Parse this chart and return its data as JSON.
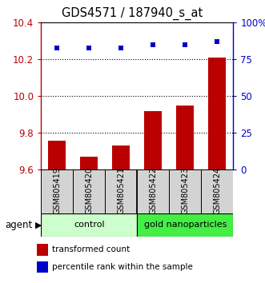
{
  "title": "GDS4571 / 187940_s_at",
  "samples": [
    "GSM805419",
    "GSM805420",
    "GSM805421",
    "GSM805422",
    "GSM805423",
    "GSM805424"
  ],
  "bar_values": [
    9.76,
    9.67,
    9.73,
    9.92,
    9.95,
    10.21
  ],
  "scatter_values": [
    83,
    83,
    83,
    85,
    85,
    87
  ],
  "bar_color": "#bb0000",
  "scatter_color": "#0000cc",
  "ylim_left": [
    9.6,
    10.4
  ],
  "ylim_right": [
    0,
    100
  ],
  "yticks_left": [
    9.6,
    9.8,
    10.0,
    10.2,
    10.4
  ],
  "yticks_right": [
    0,
    25,
    50,
    75,
    100
  ],
  "ytick_labels_right": [
    "0",
    "25",
    "50",
    "75",
    "100%"
  ],
  "grid_values": [
    9.8,
    10.0,
    10.2
  ],
  "groups": [
    {
      "label": "control",
      "span": [
        0,
        2
      ],
      "color": "#ccffcc"
    },
    {
      "label": "gold nanoparticles",
      "span": [
        3,
        5
      ],
      "color": "#44ee44"
    }
  ],
  "agent_label": "agent",
  "legend_bar_label": "transformed count",
  "legend_scatter_label": "percentile rank within the sample",
  "title_fontsize": 10.5,
  "tick_fontsize": 8.5,
  "sample_fontsize": 7,
  "group_fontsize": 8,
  "legend_fontsize": 7.5
}
